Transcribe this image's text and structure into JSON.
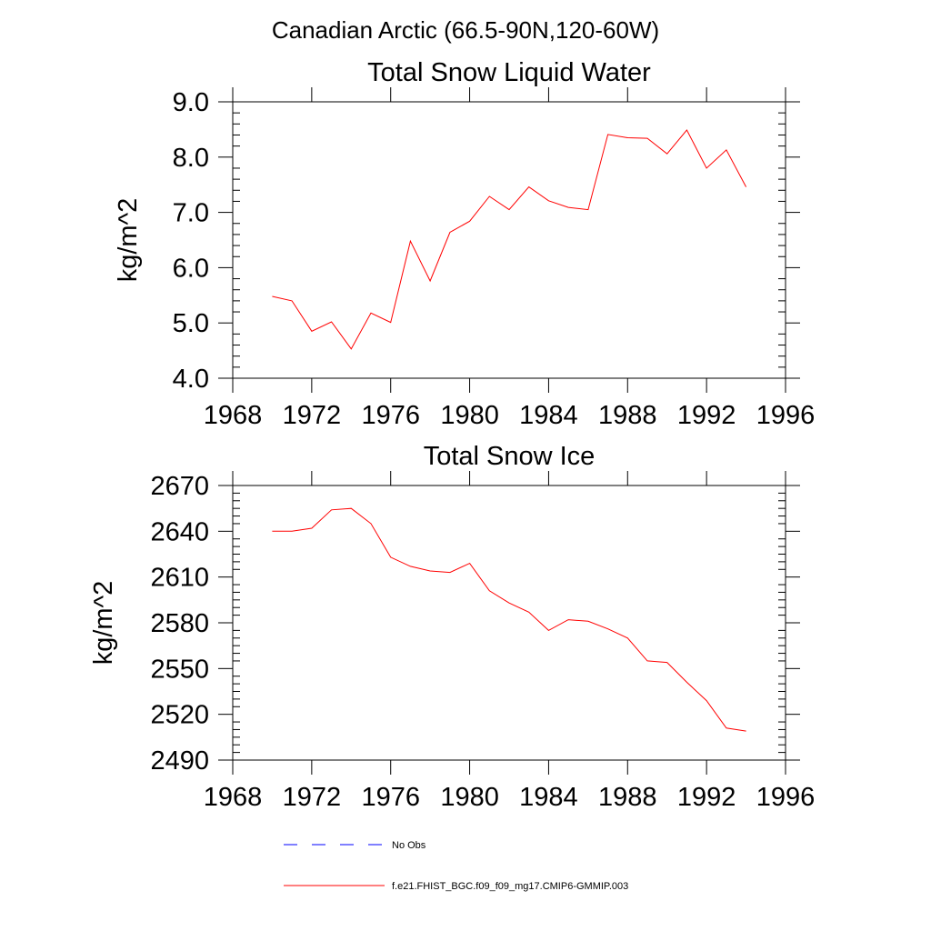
{
  "figure": {
    "suptitle": "Canadian Arctic (66.5-90N,120-60W)"
  },
  "chart_data": [
    {
      "type": "line",
      "title": "Total Snow Liquid Water",
      "xlabel": "",
      "ylabel": "kg/m^2",
      "xlim": [
        1968,
        1996
      ],
      "ylim": [
        4.0,
        9.0
      ],
      "xticks": [
        1968,
        1972,
        1976,
        1980,
        1984,
        1988,
        1992,
        1996
      ],
      "xtick_labels": [
        "1968",
        "1972",
        "1976",
        "1980",
        "1984",
        "1988",
        "1992",
        "1996"
      ],
      "yticks": [
        4.0,
        5.0,
        6.0,
        7.0,
        8.0,
        9.0
      ],
      "ytick_labels": [
        "4.0",
        "5.0",
        "6.0",
        "7.0",
        "8.0",
        "9.0"
      ],
      "grid": false,
      "series": [
        {
          "name": "f.e21.FHIST_BGC.f09_f09_mg17.CMIP6-GMMIP.003",
          "color": "#ff0000",
          "x": [
            1970,
            1971,
            1972,
            1973,
            1974,
            1975,
            1976,
            1977,
            1978,
            1979,
            1980,
            1981,
            1982,
            1983,
            1984,
            1985,
            1986,
            1987,
            1988,
            1989,
            1990,
            1991,
            1992,
            1993,
            1994
          ],
          "values": [
            5.48,
            5.4,
            4.85,
            5.02,
            4.53,
            5.18,
            5.01,
            6.48,
            5.76,
            6.64,
            6.84,
            7.29,
            7.05,
            7.46,
            7.21,
            7.09,
            7.05,
            8.41,
            8.35,
            8.34,
            8.06,
            8.49,
            7.8,
            8.13,
            7.46
          ]
        }
      ]
    },
    {
      "type": "line",
      "title": "Total Snow Ice",
      "xlabel": "",
      "ylabel": "kg/m^2",
      "xlim": [
        1968,
        1996
      ],
      "ylim": [
        2490,
        2670
      ],
      "xticks": [
        1968,
        1972,
        1976,
        1980,
        1984,
        1988,
        1992,
        1996
      ],
      "xtick_labels": [
        "1968",
        "1972",
        "1976",
        "1980",
        "1984",
        "1988",
        "1992",
        "1996"
      ],
      "yticks": [
        2490,
        2520,
        2550,
        2580,
        2610,
        2640,
        2670
      ],
      "ytick_labels": [
        "2490",
        "2520",
        "2550",
        "2580",
        "2610",
        "2640",
        "2670"
      ],
      "grid": false,
      "series": [
        {
          "name": "f.e21.FHIST_BGC.f09_f09_mg17.CMIP6-GMMIP.003",
          "color": "#ff0000",
          "x": [
            1970,
            1971,
            1972,
            1973,
            1974,
            1975,
            1976,
            1977,
            1978,
            1979,
            1980,
            1981,
            1982,
            1983,
            1984,
            1985,
            1986,
            1987,
            1988,
            1989,
            1990,
            1991,
            1992,
            1993,
            1994
          ],
          "values": [
            2640,
            2640,
            2642,
            2654,
            2655,
            2645,
            2623,
            2617,
            2614,
            2613,
            2619,
            2601,
            2593,
            2587,
            2575,
            2582,
            2581,
            2576,
            2570,
            2555,
            2554,
            2541,
            2529,
            2511,
            2509
          ]
        }
      ]
    }
  ],
  "legend": {
    "placement": "bottom-center",
    "entries": [
      {
        "label": "No Obs",
        "color": "#0000ff",
        "style": "dashed"
      },
      {
        "label": "f.e21.FHIST_BGC.f09_f09_mg17.CMIP6-GMMIP.003",
        "color": "#ff0000",
        "style": "solid"
      }
    ]
  }
}
